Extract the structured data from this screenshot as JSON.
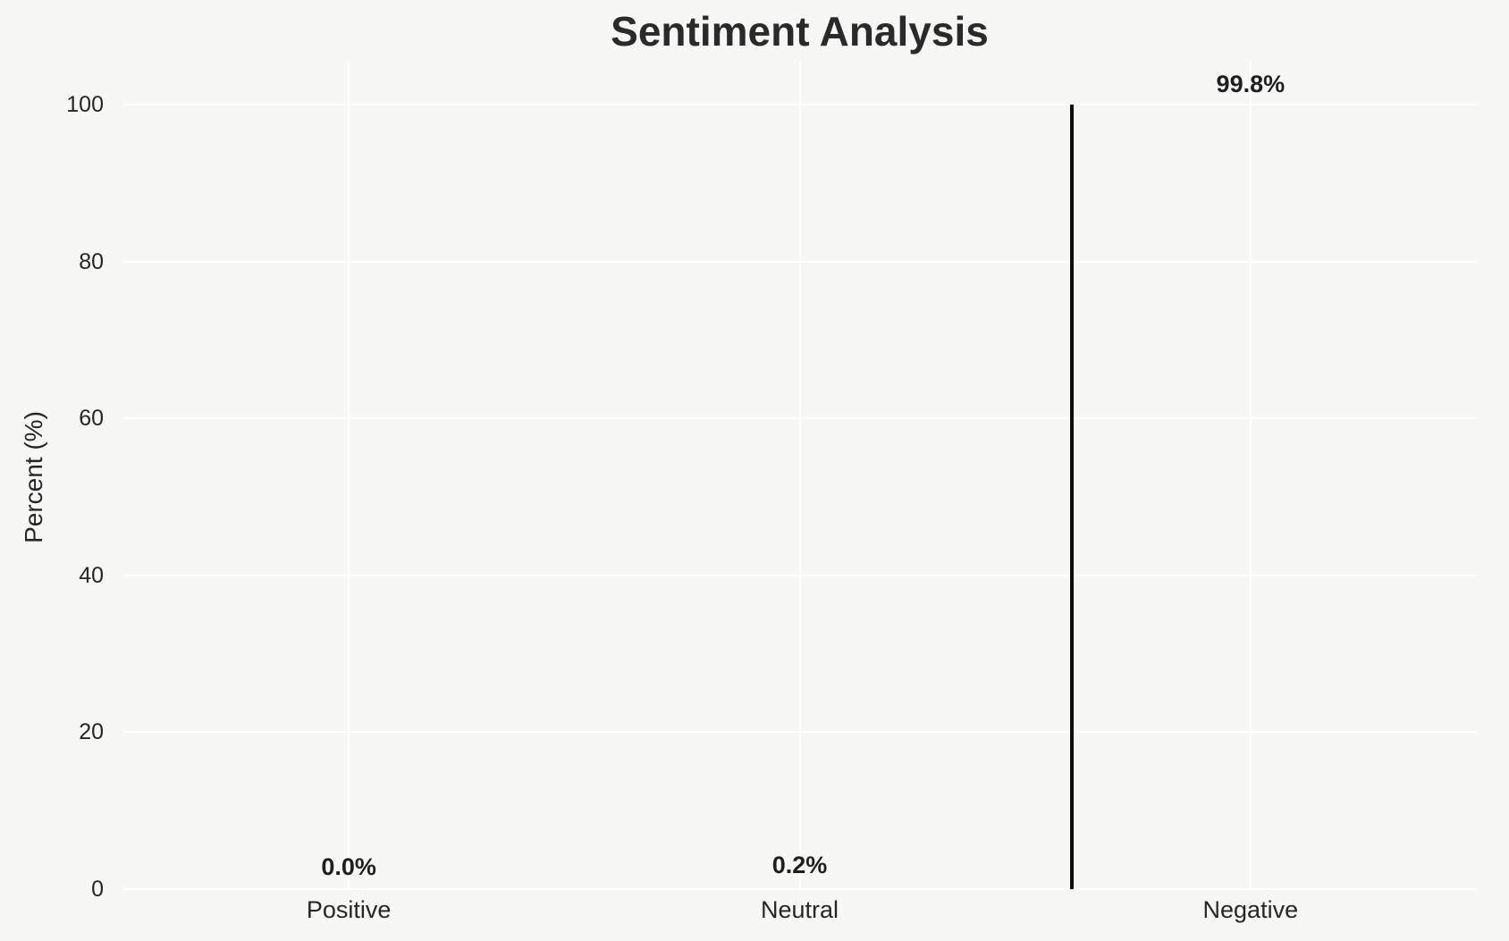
{
  "chart_data": {
    "type": "bar",
    "title": "Sentiment Analysis",
    "xlabel": "",
    "ylabel": "Percent (%)",
    "categories": [
      "Positive",
      "Neutral",
      "Negative"
    ],
    "values": [
      0.0,
      0.2,
      99.8
    ],
    "bar_labels": [
      "0.0%",
      "0.2%",
      "99.8%"
    ],
    "yticks": [
      0,
      20,
      40,
      60,
      80,
      100
    ],
    "ylim": [
      0,
      105
    ],
    "grid": true,
    "legend": false,
    "colors": {
      "bar_fill": "#d62728",
      "bar_edge": "#0d0d0d",
      "background": "#f7f7f6",
      "gridline": "#ffffff",
      "text": "#262626"
    }
  }
}
